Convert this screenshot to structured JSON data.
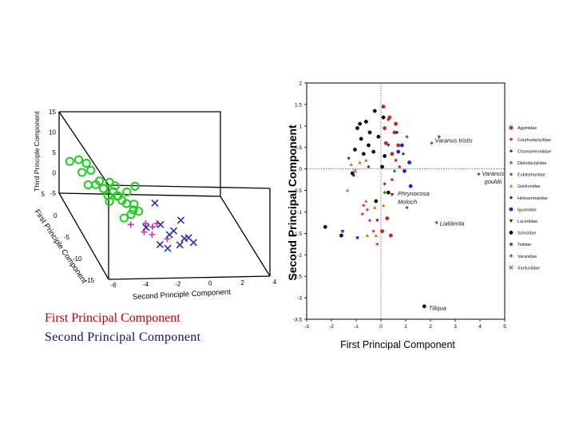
{
  "captions": {
    "line1": "First Principal Component",
    "line2": "Second Principal Component",
    "line1_color": "#c00000",
    "line2_color": "#101060"
  },
  "chart_data": [
    {
      "type": "scatter",
      "dimensions": 3,
      "title": "",
      "xlabel": "First Principle Component",
      "ylabel": "Second Principle Component",
      "zlabel": "Third Principle Component",
      "x_ticks": [
        "5",
        "0",
        "-5",
        "-10",
        "-15"
      ],
      "y_ticks": [
        "-6",
        "-4",
        "-2",
        "0",
        "2",
        "4"
      ],
      "z_ticks": [
        "15",
        "10",
        "5",
        "0",
        "-5"
      ],
      "xlim": [
        -15,
        5
      ],
      "ylim": [
        -6,
        4
      ],
      "zlim": [
        -5,
        15
      ],
      "series": [
        {
          "marker": "circle",
          "color": "#22cc22",
          "points": [
            [
              1,
              -5.4,
              7.5
            ],
            [
              0.5,
              -5,
              7.2
            ],
            [
              2,
              -5.8,
              6
            ],
            [
              -1,
              -5.5,
              6.5
            ],
            [
              0,
              -4.8,
              6
            ],
            [
              -1.5,
              -4.5,
              5
            ],
            [
              -2,
              -4.8,
              4.6
            ],
            [
              -2.5,
              -4.4,
              4.2
            ],
            [
              -1.5,
              -5.2,
              4
            ],
            [
              -2,
              -3.6,
              4.4
            ],
            [
              -2.6,
              -3.8,
              3.6
            ],
            [
              -3,
              -4.2,
              3
            ],
            [
              -3.2,
              -3.6,
              3.2
            ],
            [
              -3.5,
              -3.4,
              2.4
            ],
            [
              -4,
              -3.2,
              2.2
            ],
            [
              -3.6,
              -4.2,
              2.2
            ],
            [
              -2.8,
              -3,
              3.8
            ],
            [
              -1,
              -3.8,
              4.2
            ],
            [
              -4.4,
              -2.8,
              2.5
            ],
            [
              -4.8,
              -2.9,
              1.5
            ],
            [
              -5.2,
              -3.1,
              0.8
            ],
            [
              -5.6,
              -3.6,
              0.3
            ],
            [
              -5,
              -2.6,
              1.4
            ],
            [
              -2.2,
              -2.4,
              4.6
            ],
            [
              -4,
              -3.8,
              4
            ]
          ]
        },
        {
          "marker": "plus",
          "color": "#cc33aa",
          "points": [
            [
              -6.5,
              -2.4,
              0
            ],
            [
              -7,
              -3.4,
              0.2
            ],
            [
              -8,
              -2.2,
              0.8
            ],
            [
              -8.5,
              -2.8,
              0
            ],
            [
              -10,
              -1.6,
              0
            ],
            [
              -10.4,
              -2.6,
              1.4
            ],
            [
              -7.2,
              -1.8,
              0.8
            ]
          ]
        },
        {
          "marker": "x",
          "color": "#2233aa",
          "points": [
            [
              -5,
              -1.6,
              3.5
            ],
            [
              -8,
              -2.6,
              0.6
            ],
            [
              -8.6,
              -1.8,
              2
            ],
            [
              -9.6,
              -1.4,
              0.6
            ],
            [
              -10,
              -1.2,
              2
            ],
            [
              -10.4,
              -0.6,
              0.6
            ],
            [
              -10.8,
              -0.4,
              1.2
            ],
            [
              -11.5,
              -0.2,
              0.8
            ],
            [
              -12.5,
              -1.2,
              1.2
            ],
            [
              -11,
              -2.2,
              -0.4
            ],
            [
              -9,
              -0.6,
              3.6
            ],
            [
              -12.8,
              -2,
              0.6
            ]
          ]
        }
      ]
    },
    {
      "type": "scatter",
      "title": "",
      "xlabel": "First Principal Component",
      "ylabel": "Second Principal Component",
      "xlim": [
        -3,
        5
      ],
      "ylim": [
        -3.5,
        2
      ],
      "x_ticks": [
        -3,
        -2,
        -1,
        0,
        1,
        2,
        3,
        4,
        5
      ],
      "y_ticks": [
        2,
        1.5,
        1,
        0.5,
        0,
        -0.5,
        -1,
        -1.5,
        -2,
        -2.5,
        -3,
        -3.5
      ],
      "reference_lines": {
        "x": 0,
        "y": 0
      },
      "annotations": [
        {
          "text": "Varanus tristis",
          "x": 2.05,
          "y": 0.65
        },
        {
          "text": "Varanus",
          "x": 3.95,
          "y": -0.12
        },
        {
          "text": "gouldii",
          "x": 4.05,
          "y": -0.3
        },
        {
          "text": "Phrynocosa",
          "x": 0.55,
          "y": -0.58
        },
        {
          "text": "Moloch",
          "x": 0.55,
          "y": -0.78
        },
        {
          "text": "Lialdenta",
          "x": 2.25,
          "y": -1.28
        },
        {
          "text": "Tiliqua",
          "x": 1.8,
          "y": -3.25
        }
      ],
      "legend": {
        "position": "right",
        "entries": [
          {
            "name": "Agamidae",
            "color": "#cc2222",
            "marker": "circle"
          },
          {
            "name": "Carphodactylidae",
            "color": "#cc2222",
            "marker": "diamond"
          },
          {
            "name": "Chamaeleontidae",
            "color": "#444444",
            "marker": "diamond"
          },
          {
            "name": "Diplodactylidae",
            "color": "#cc33cc",
            "marker": "diamond"
          },
          {
            "name": "Eublepharidae",
            "color": "#228b22",
            "marker": "diamond"
          },
          {
            "name": "Gekkonidae",
            "color": "#cc7700",
            "marker": "triangle"
          },
          {
            "name": "Heloxermatidae",
            "color": "#2222aa",
            "marker": "diamond"
          },
          {
            "name": "Iguanidae",
            "color": "#2222cc",
            "marker": "circle"
          },
          {
            "name": "Lacertidae",
            "color": "#8b0000",
            "marker": "triangle-down"
          },
          {
            "name": "Scincidae",
            "color": "#111111",
            "marker": "circle"
          },
          {
            "name": "Teiidae",
            "color": "#2244cc",
            "marker": "square"
          },
          {
            "name": "Varanidae",
            "color": "#228b22",
            "marker": "diamond"
          },
          {
            "name": "Xantusiidae",
            "color": "#8844cc",
            "marker": "x"
          }
        ]
      },
      "series": [
        {
          "name": "Agamidae",
          "color": "#cc2222",
          "marker": "circle",
          "points": [
            [
              0.1,
              1.45
            ],
            [
              0.35,
              1.2
            ],
            [
              0.15,
              0.95
            ],
            [
              0.55,
              0.85
            ],
            [
              0.2,
              0.6
            ],
            [
              0.45,
              0.35
            ],
            [
              0.7,
              0.55
            ],
            [
              0.05,
              -1.45
            ],
            [
              0.4,
              -1.55
            ],
            [
              0.25,
              -1.15
            ],
            [
              0.6,
              1.05
            ]
          ]
        },
        {
          "name": "Carphodactylidae",
          "color": "#cc2222",
          "marker": "diamond",
          "points": [
            [
              0.3,
              1.15
            ],
            [
              0.6,
              0.2
            ],
            [
              0.75,
              0.05
            ],
            [
              0.15,
              -0.35
            ],
            [
              0.45,
              -0.25
            ]
          ]
        },
        {
          "name": "Chamaeleontidae",
          "color": "#444444",
          "marker": "diamond",
          "points": [
            [
              -1.3,
              0.25
            ],
            [
              -1.1,
              -0.15
            ],
            [
              -0.5,
              0.05
            ],
            [
              0.9,
              0.35
            ]
          ]
        },
        {
          "name": "Diplodactylidae",
          "color": "#cc33cc",
          "marker": "diamond",
          "points": [
            [
              -0.7,
              -0.85
            ],
            [
              -0.55,
              -0.95
            ],
            [
              -0.45,
              -1.2
            ],
            [
              -0.3,
              -1.45
            ],
            [
              -0.75,
              -1.05
            ],
            [
              -0.15,
              -1.75
            ]
          ]
        },
        {
          "name": "Eublepharidae",
          "color": "#228b22",
          "marker": "diamond",
          "points": [
            [
              0.55,
              -0.05
            ],
            [
              1.05,
              0.75
            ],
            [
              0.15,
              -0.55
            ]
          ]
        },
        {
          "name": "Gekkonidae",
          "color": "#cc7700",
          "marker": "triangle",
          "points": [
            [
              -1.2,
              0.1
            ],
            [
              -0.85,
              0.15
            ],
            [
              -0.6,
              -0.75
            ],
            [
              -0.25,
              -0.9
            ],
            [
              -1.35,
              -0.5
            ],
            [
              -0.55,
              -1.55
            ],
            [
              -0.2,
              -1.55
            ],
            [
              0.1,
              -0.85
            ],
            [
              -0.6,
              0.2
            ]
          ]
        },
        {
          "name": "Heloxermatidae",
          "color": "#2222aa",
          "marker": "diamond",
          "points": [
            [
              0.65,
              0.85
            ]
          ]
        },
        {
          "name": "Iguanidae",
          "color": "#2222cc",
          "marker": "circle",
          "points": [
            [
              0.95,
              -0.05
            ],
            [
              0.85,
              0.55
            ],
            [
              1.15,
              0.15
            ],
            [
              0.7,
              0.4
            ],
            [
              1.2,
              -0.4
            ]
          ]
        },
        {
          "name": "Lacertidae",
          "color": "#8b0000",
          "marker": "triangle-down",
          "points": [
            [
              0.3,
              0.55
            ],
            [
              -0.15,
              -1.2
            ],
            [
              0.45,
              -0.6
            ]
          ]
        },
        {
          "name": "Scincidae",
          "color": "#111111",
          "marker": "circle",
          "points": [
            [
              -1.05,
              0.45
            ],
            [
              -0.95,
              0.95
            ],
            [
              -0.8,
              0.7
            ],
            [
              -0.6,
              1.1
            ],
            [
              -0.45,
              0.85
            ],
            [
              -0.3,
              0.4
            ],
            [
              -0.25,
              1.35
            ],
            [
              -0.1,
              0.75
            ],
            [
              0.05,
              0.05
            ],
            [
              0.15,
              0.3
            ],
            [
              -1.15,
              -0.1
            ],
            [
              -0.7,
              0.35
            ],
            [
              0.1,
              1.2
            ],
            [
              -0.85,
              1.05
            ],
            [
              -0.5,
              0.55
            ],
            [
              -1.6,
              -1.55
            ],
            [
              -0.2,
              -0.75
            ],
            [
              -2.25,
              -1.35
            ],
            [
              0.3,
              -0.55
            ],
            [
              1.75,
              -3.2
            ]
          ]
        },
        {
          "name": "Teiidae",
          "color": "#2244cc",
          "marker": "square",
          "points": [
            [
              -1.55,
              -1.45
            ],
            [
              -0.95,
              -1.6
            ]
          ]
        },
        {
          "name": "Varanidae",
          "color": "#228b22",
          "marker": "diamond",
          "points": [
            [
              2.05,
              0.6
            ],
            [
              2.35,
              0.75
            ],
            [
              3.95,
              -0.12
            ],
            [
              2.25,
              -1.25
            ],
            [
              1.05,
              -0.9
            ]
          ]
        },
        {
          "name": "Xantusiidae",
          "color": "#8844cc",
          "marker": "x",
          "points": [
            [
              -1.05,
              -0.05
            ]
          ]
        }
      ]
    }
  ]
}
